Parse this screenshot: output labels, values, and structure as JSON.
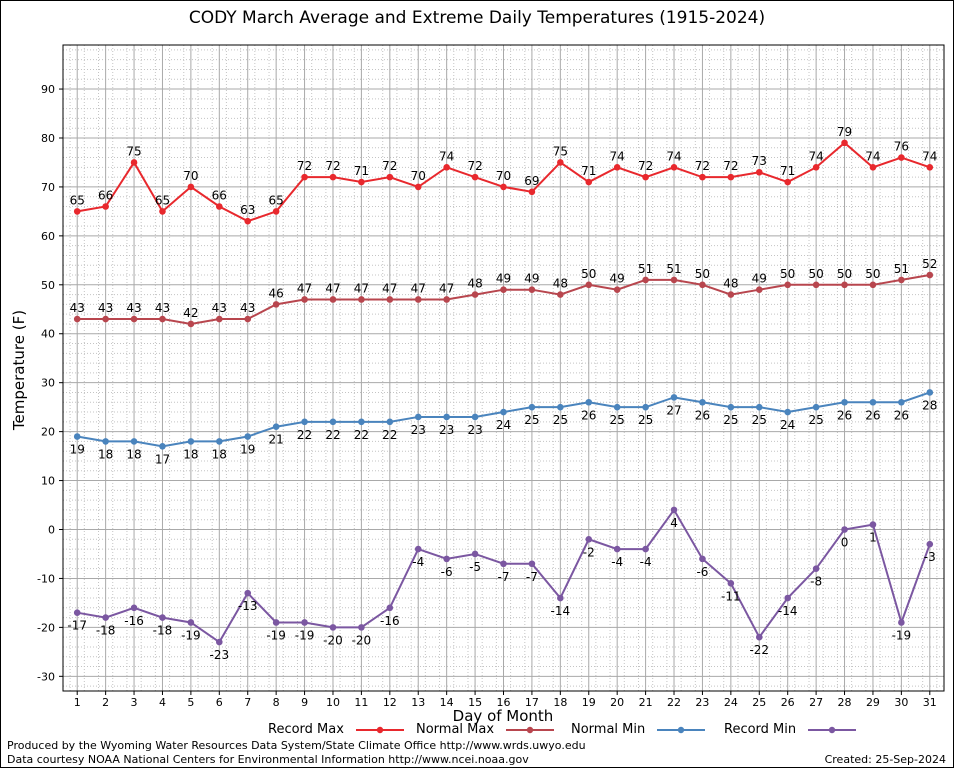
{
  "chart_data": {
    "type": "line",
    "title": "CODY March Average and Extreme Daily Temperatures (1915-2024)",
    "xlabel": "Day of Month",
    "ylabel": "Temperature (F)",
    "x": [
      1,
      2,
      3,
      4,
      5,
      6,
      7,
      8,
      9,
      10,
      11,
      12,
      13,
      14,
      15,
      16,
      17,
      18,
      19,
      20,
      21,
      22,
      23,
      24,
      25,
      26,
      27,
      28,
      29,
      30,
      31
    ],
    "ylim": [
      -33,
      99
    ],
    "yticks": [
      -30,
      -20,
      -10,
      0,
      10,
      20,
      30,
      40,
      50,
      60,
      70,
      80,
      90
    ],
    "grid": true,
    "legend_position": "bottom",
    "series": [
      {
        "name": "Record Max",
        "color": "#e8282d",
        "values": [
          65,
          66,
          75,
          65,
          70,
          66,
          63,
          65,
          72,
          72,
          71,
          72,
          70,
          74,
          72,
          70,
          69,
          75,
          71,
          74,
          72,
          74,
          72,
          72,
          73,
          71,
          74,
          79,
          74,
          76,
          74
        ]
      },
      {
        "name": "Normal Max",
        "color": "#b8464e",
        "values": [
          43,
          43,
          43,
          43,
          42,
          43,
          43,
          46,
          47,
          47,
          47,
          47,
          47,
          47,
          48,
          49,
          49,
          48,
          50,
          49,
          51,
          51,
          50,
          48,
          49,
          50,
          50,
          50,
          50,
          51,
          52
        ]
      },
      {
        "name": "Normal Min",
        "color": "#4a84bd",
        "values": [
          19,
          18,
          18,
          17,
          18,
          18,
          19,
          21,
          22,
          22,
          22,
          22,
          23,
          23,
          23,
          24,
          25,
          25,
          26,
          25,
          25,
          27,
          26,
          25,
          25,
          24,
          25,
          26,
          26,
          26,
          28
        ]
      },
      {
        "name": "Record Min",
        "color": "#7b57a1",
        "values": [
          -17,
          -18,
          -16,
          -18,
          -19,
          -23,
          -13,
          -19,
          -19,
          -20,
          -20,
          -16,
          -4,
          -6,
          -5,
          -7,
          -7,
          -14,
          -2,
          -4,
          -4,
          4,
          -6,
          -11,
          -22,
          -14,
          -8,
          0,
          1,
          -19,
          -3
        ]
      }
    ]
  },
  "credits": {
    "line1": "Produced by the Wyoming Water Resources Data System/State Climate Office http://www.wrds.uwyo.edu",
    "line2": "Data courtesy NOAA National Centers for Environmental Information http://www.ncei.noaa.gov",
    "created": "Created:  25-Sep-2024"
  }
}
